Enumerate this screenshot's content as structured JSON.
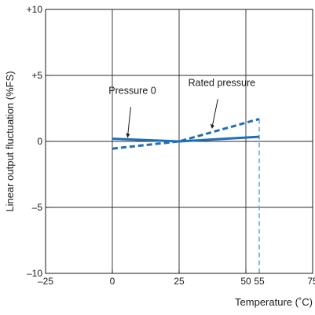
{
  "chart_data": {
    "type": "line",
    "title": "",
    "xlabel": "Temperature (˚C)",
    "ylabel": "Linear output fluctuation (%FS)",
    "xlim": [
      -25,
      75
    ],
    "ylim": [
      -10,
      10
    ],
    "grid": true,
    "x_ticks": [
      {
        "value": -25,
        "label": "–25"
      },
      {
        "value": 0,
        "label": "0"
      },
      {
        "value": 25,
        "label": "25"
      },
      {
        "value": 50,
        "label": "50"
      },
      {
        "value": 55,
        "label": "55"
      },
      {
        "value": 75,
        "label": "75"
      }
    ],
    "y_ticks": [
      {
        "value": 10,
        "label": "+10"
      },
      {
        "value": 5,
        "label": "+5"
      },
      {
        "value": 0,
        "label": "0"
      },
      {
        "value": -5,
        "label": "–5"
      },
      {
        "value": -10,
        "label": "–10"
      }
    ],
    "series": [
      {
        "name": "Pressure 0",
        "style": "solid",
        "color": "#1f6fb8",
        "x": [
          0,
          25,
          55
        ],
        "y": [
          0.2,
          0.0,
          0.35
        ]
      },
      {
        "name": "Rated pressure",
        "style": "dashed",
        "color": "#1f6fb8",
        "x": [
          0,
          25,
          55
        ],
        "y": [
          -0.55,
          0.0,
          1.7
        ]
      }
    ],
    "reference_lines": [
      {
        "x": 55,
        "style": "dashed",
        "color": "#5ba3e0"
      }
    ],
    "annotations": [
      {
        "text": "Pressure 0",
        "series": "Pressure 0",
        "point": [
          6,
          0.2
        ]
      },
      {
        "text": "Rated pressure",
        "series": "Rated pressure",
        "point": [
          37,
          0.9
        ]
      }
    ]
  }
}
